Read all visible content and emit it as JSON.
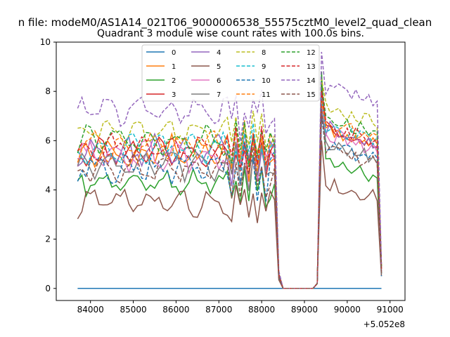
{
  "chart_data": {
    "type": "line",
    "suptitle": "n file: modeM0/AS1A14_021T06_9000006538_55575cztM0_level2_quad_clean",
    "title": "Quadrant 3 module wise count rates with 100.0s bins.",
    "xlabel": "",
    "ylabel": "",
    "x_offset_label": "+5.052e8",
    "xlim": [
      83200,
      91350
    ],
    "ylim": [
      -0.49,
      10.0
    ],
    "x_ticks": [
      84000,
      85000,
      86000,
      87000,
      88000,
      89000,
      90000,
      91000
    ],
    "x_tick_labels": [
      "84000",
      "85000",
      "86000",
      "87000",
      "88000",
      "89000",
      "90000",
      "91000"
    ],
    "y_ticks": [
      0,
      2,
      4,
      6,
      8,
      10
    ],
    "y_tick_labels": [
      "0",
      "2",
      "4",
      "6",
      "8",
      "10"
    ],
    "x_start": 83700,
    "x_step": 100,
    "n_points": 72,
    "gap_window": [
      88350,
      89250
    ],
    "bins_shown": "72 bins of 100 s from 83700 to 90800 (offset +5.052e8); count rate near 0 between about 88400 and 89200",
    "legend_location": "upper center",
    "legend_columns": 4,
    "series": [
      {
        "name": "0",
        "color": "#1f77b4",
        "dash": "solid",
        "level": 0.0,
        "noise": 0.0,
        "peak": 0.0,
        "end": 0.0
      },
      {
        "name": "1",
        "color": "#ff7f0e",
        "dash": "solid",
        "level": 5.6,
        "noise": 0.35,
        "peak": 8.0,
        "end": 0.9
      },
      {
        "name": "2",
        "color": "#2ca02c",
        "dash": "solid",
        "level": 4.3,
        "noise": 0.3,
        "peak": 8.8,
        "end": 0.6
      },
      {
        "name": "3",
        "color": "#d62728",
        "dash": "solid",
        "level": 5.5,
        "noise": 0.3,
        "peak": 8.2,
        "end": 0.8
      },
      {
        "name": "4",
        "color": "#9467bd",
        "dash": "solid",
        "level": 5.6,
        "noise": 0.35,
        "peak": 7.0,
        "end": 0.7
      },
      {
        "name": "5",
        "color": "#8c564b",
        "dash": "solid",
        "level": 3.5,
        "noise": 0.3,
        "peak": 6.0,
        "end": 0.5
      },
      {
        "name": "6",
        "color": "#e377c2",
        "dash": "solid",
        "level": 5.4,
        "noise": 0.35,
        "peak": 7.5,
        "end": 0.7
      },
      {
        "name": "7",
        "color": "#7f7f7f",
        "dash": "solid",
        "level": 5.0,
        "noise": 0.3,
        "peak": 7.2,
        "end": 0.6
      },
      {
        "name": "8",
        "color": "#bcbd22",
        "dash": "dashed",
        "level": 6.4,
        "noise": 0.3,
        "peak": 8.5,
        "end": 0.9
      },
      {
        "name": "9",
        "color": "#17becf",
        "dash": "dashed",
        "level": 5.7,
        "noise": 0.3,
        "peak": 7.8,
        "end": 0.8
      },
      {
        "name": "10",
        "color": "#1f77b4",
        "dash": "dashed",
        "level": 4.9,
        "noise": 0.35,
        "peak": 7.0,
        "end": 0.5
      },
      {
        "name": "11",
        "color": "#ff7f0e",
        "dash": "dashed",
        "level": 5.8,
        "noise": 0.3,
        "peak": 7.6,
        "end": 0.8
      },
      {
        "name": "12",
        "color": "#2ca02c",
        "dash": "dashed",
        "level": 6.0,
        "noise": 0.3,
        "peak": 8.3,
        "end": 0.9
      },
      {
        "name": "13",
        "color": "#d62728",
        "dash": "dashed",
        "level": 5.7,
        "noise": 0.3,
        "peak": 8.0,
        "end": 0.8
      },
      {
        "name": "14",
        "color": "#9467bd",
        "dash": "dashed",
        "level": 7.2,
        "noise": 0.3,
        "peak": 9.6,
        "end": 1.0
      },
      {
        "name": "15",
        "color": "#8c564b",
        "dash": "dashed",
        "level": 4.8,
        "noise": 0.3,
        "peak": 7.3,
        "end": 0.6
      }
    ]
  }
}
